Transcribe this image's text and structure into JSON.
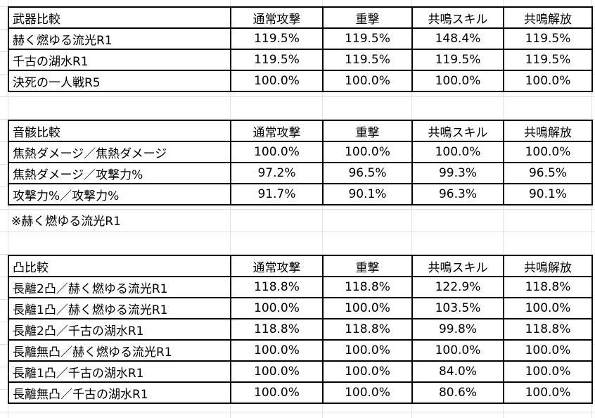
{
  "weapon": {
    "title": "武器比較",
    "headers": [
      "通常攻撃",
      "重撃",
      "共鳴スキル",
      "共鳴解放"
    ],
    "rows": [
      {
        "label": "赫く燃ゆる流光R1",
        "values": [
          "119.5%",
          "119.5%",
          "148.4%",
          "119.5%"
        ]
      },
      {
        "label": "千古の湖水R1",
        "values": [
          "119.5%",
          "119.5%",
          "119.5%",
          "119.5%"
        ]
      },
      {
        "label": "決死の一人戦R5",
        "values": [
          "100.0%",
          "100.0%",
          "100.0%",
          "100.0%"
        ]
      }
    ]
  },
  "echo": {
    "title": "音骸比較",
    "headers": [
      "通常攻撃",
      "重撃",
      "共鳴スキル",
      "共鳴解放"
    ],
    "rows": [
      {
        "label": "焦熱ダメージ／焦熱ダメージ",
        "values": [
          "100.0%",
          "100.0%",
          "100.0%",
          "100.0%"
        ]
      },
      {
        "label": "焦熱ダメージ／攻撃力%",
        "values": [
          "97.2%",
          "96.5%",
          "99.3%",
          "96.5%"
        ]
      },
      {
        "label": "攻撃力%／攻撃力%",
        "values": [
          "91.7%",
          "90.1%",
          "96.3%",
          "90.1%"
        ]
      }
    ],
    "note": "※赫く燃ゆる流光R1"
  },
  "sequence": {
    "title": "凸比較",
    "headers": [
      "通常攻撃",
      "重撃",
      "共鳴スキル",
      "共鳴解放"
    ],
    "rows": [
      {
        "label": "長離2凸／赫く燃ゆる流光R1",
        "values": [
          "118.8%",
          "118.8%",
          "122.9%",
          "118.8%"
        ]
      },
      {
        "label": "長離1凸／赫く燃ゆる流光R1",
        "values": [
          "100.0%",
          "100.0%",
          "103.5%",
          "100.0%"
        ]
      },
      {
        "label": "長離2凸／千古の湖水R1",
        "values": [
          "118.8%",
          "118.8%",
          "99.8%",
          "118.8%"
        ]
      },
      {
        "label": "長離無凸／赫く燃ゆる流光R1",
        "values": [
          "100.0%",
          "100.0%",
          "100.0%",
          "100.0%"
        ]
      },
      {
        "label": "長離1凸／千古の湖水R1",
        "values": [
          "100.0%",
          "100.0%",
          "84.0%",
          "100.0%"
        ]
      },
      {
        "label": "長離無凸／千古の湖水R1",
        "values": [
          "100.0%",
          "100.0%",
          "80.6%",
          "100.0%"
        ]
      }
    ]
  }
}
